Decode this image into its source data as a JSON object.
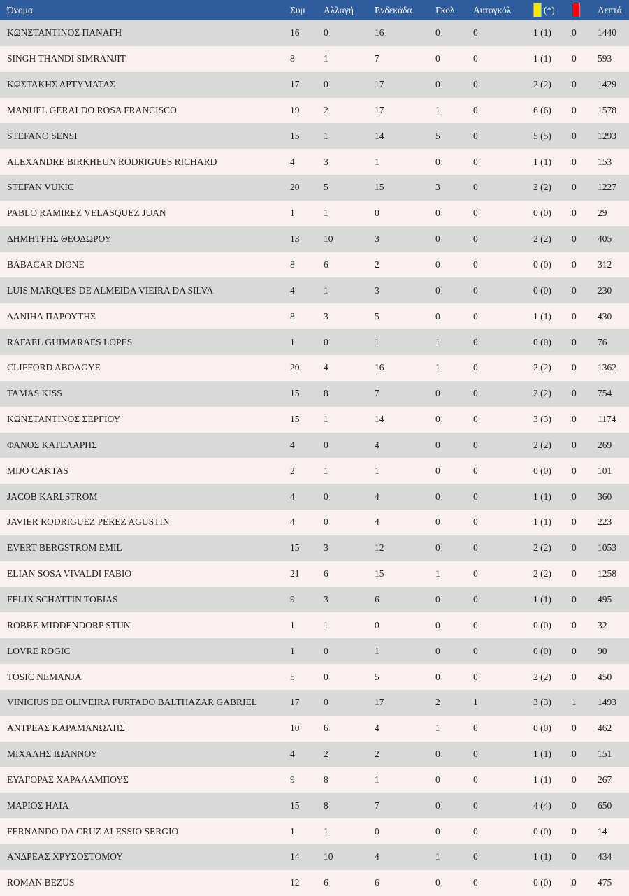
{
  "header": {
    "name": "Όνομα",
    "sym": "Συμ",
    "allagi": "Αλλαγή",
    "endekada": "Ενδεκάδα",
    "gkol": "Γκολ",
    "autogkol": "Αυτογκόλ",
    "yellow_suffix": "(*)",
    "lepta": "Λεπτά"
  },
  "icons": {
    "yellow_card": "yellow-card-icon",
    "red_card": "red-card-icon"
  },
  "colors": {
    "header_bg": "#2e5c9d",
    "header_text": "#ffffff",
    "row_odd_bg": "#d9d9d9",
    "row_even_bg": "#faf0f0",
    "yellow_card": "#ffe600",
    "red_card": "#fb0007",
    "card_border": "#57b0e2",
    "row_text": "#1f1f1f"
  },
  "table": {
    "rows": [
      [
        "ΚΩΝΣΤΑΝΤΙΝΟΣ ΠΑΝΑΓΗ",
        "16",
        "0",
        "16",
        "0",
        "0",
        "1 (1)",
        "0",
        "1440"
      ],
      [
        "SINGH THANDI SIMRANJIT",
        "8",
        "1",
        "7",
        "0",
        "0",
        "1 (1)",
        "0",
        "593"
      ],
      [
        "ΚΩΣΤΑΚΗΣ ΑΡΤΥΜΑΤΑΣ",
        "17",
        "0",
        "17",
        "0",
        "0",
        "2 (2)",
        "0",
        "1429"
      ],
      [
        "MANUEL GERALDO ROSA FRANCISCO",
        "19",
        "2",
        "17",
        "1",
        "0",
        "6 (6)",
        "0",
        "1578"
      ],
      [
        "STEFANO SENSI",
        "15",
        "1",
        "14",
        "5",
        "0",
        "5 (5)",
        "0",
        "1293"
      ],
      [
        "ALEXANDRE BIRKHEUN RODRIGUES RICHARD",
        "4",
        "3",
        "1",
        "0",
        "0",
        "1 (1)",
        "0",
        "153"
      ],
      [
        "STEFAN VUKIC",
        "20",
        "5",
        "15",
        "3",
        "0",
        "2 (2)",
        "0",
        "1227"
      ],
      [
        "PABLO RAMIREZ VELASQUEZ JUAN",
        "1",
        "1",
        "0",
        "0",
        "0",
        "0 (0)",
        "0",
        "29"
      ],
      [
        "ΔΗΜΗΤΡΗΣ ΘΕΟΔΩΡΟΥ",
        "13",
        "10",
        "3",
        "0",
        "0",
        "2 (2)",
        "0",
        "405"
      ],
      [
        "BABACAR DIONE",
        "8",
        "6",
        "2",
        "0",
        "0",
        "0 (0)",
        "0",
        "312"
      ],
      [
        "LUIS MARQUES DE ALMEIDA VIEIRA DA SILVA",
        "4",
        "1",
        "3",
        "0",
        "0",
        "0 (0)",
        "0",
        "230"
      ],
      [
        "ΔΑΝΙΗΛ ΠΑΡΟΥΤΗΣ",
        "8",
        "3",
        "5",
        "0",
        "0",
        "1 (1)",
        "0",
        "430"
      ],
      [
        "RAFAEL GUIMARAES LOPES",
        "1",
        "0",
        "1",
        "1",
        "0",
        "0 (0)",
        "0",
        "76"
      ],
      [
        "CLIFFORD ABOAGYE",
        "20",
        "4",
        "16",
        "1",
        "0",
        "2 (2)",
        "0",
        "1362"
      ],
      [
        "TAMAS KISS",
        "15",
        "8",
        "7",
        "0",
        "0",
        "2 (2)",
        "0",
        "754"
      ],
      [
        "ΚΩΝΣΤΑΝΤΙΝΟΣ ΣΕΡΓΙΟΥ",
        "15",
        "1",
        "14",
        "0",
        "0",
        "3 (3)",
        "0",
        "1174"
      ],
      [
        "ΦΑΝΟΣ ΚΑΤΕΛΑΡΗΣ",
        "4",
        "0",
        "4",
        "0",
        "0",
        "2 (2)",
        "0",
        "269"
      ],
      [
        "MIJO CAKTAS",
        "2",
        "1",
        "1",
        "0",
        "0",
        "0 (0)",
        "0",
        "101"
      ],
      [
        "JACOB KARLSTROM",
        "4",
        "0",
        "4",
        "0",
        "0",
        "1 (1)",
        "0",
        "360"
      ],
      [
        "JAVIER RODRIGUEZ PEREZ AGUSTIN",
        "4",
        "0",
        "4",
        "0",
        "0",
        "1 (1)",
        "0",
        "223"
      ],
      [
        "EVERT BERGSTROM EMIL",
        "15",
        "3",
        "12",
        "0",
        "0",
        "2 (2)",
        "0",
        "1053"
      ],
      [
        "ELIAN SOSA VIVALDI FABIO",
        "21",
        "6",
        "15",
        "1",
        "0",
        "2 (2)",
        "0",
        "1258"
      ],
      [
        "FELIX SCHATTIN TOBIAS",
        "9",
        "3",
        "6",
        "0",
        "0",
        "1 (1)",
        "0",
        "495"
      ],
      [
        "ROBBE MIDDENDORP STIJN",
        "1",
        "1",
        "0",
        "0",
        "0",
        "0 (0)",
        "0",
        "32"
      ],
      [
        "LOVRE ROGIC",
        "1",
        "0",
        "1",
        "0",
        "0",
        "0 (0)",
        "0",
        "90"
      ],
      [
        "TOSIC NEMANJA",
        "5",
        "0",
        "5",
        "0",
        "0",
        "2 (2)",
        "0",
        "450"
      ],
      [
        "VINICIUS DE OLIVEIRA FURTADO BALTHAZAR GABRIEL",
        "17",
        "0",
        "17",
        "2",
        "1",
        "3 (3)",
        "1",
        "1493"
      ],
      [
        "ΑΝΤΡΕΑΣ ΚΑΡΑΜΑΝΩΛΗΣ",
        "10",
        "6",
        "4",
        "1",
        "0",
        "0 (0)",
        "0",
        "462"
      ],
      [
        "ΜΙΧΑΛΗΣ ΙΩΑΝΝΟΥ",
        "4",
        "2",
        "2",
        "0",
        "0",
        "1 (1)",
        "0",
        "151"
      ],
      [
        "ΕΥΑΓΟΡΑΣ ΧΑΡΑΛΑΜΠΟΥΣ",
        "9",
        "8",
        "1",
        "0",
        "0",
        "1 (1)",
        "0",
        "267"
      ],
      [
        "ΜΑΡΙΟΣ ΗΛΙΑ",
        "15",
        "8",
        "7",
        "0",
        "0",
        "4 (4)",
        "0",
        "650"
      ],
      [
        "FERNANDO DA CRUZ ALESSIO SERGIO",
        "1",
        "1",
        "0",
        "0",
        "0",
        "0 (0)",
        "0",
        "14"
      ],
      [
        "ΑΝΔΡΕΑΣ ΧΡΥΣΟΣΤΟΜΟΥ",
        "14",
        "10",
        "4",
        "1",
        "0",
        "1 (1)",
        "0",
        "434"
      ],
      [
        "ROMAN BEZUS",
        "12",
        "6",
        "6",
        "0",
        "0",
        "0 (0)",
        "0",
        "475"
      ]
    ]
  }
}
